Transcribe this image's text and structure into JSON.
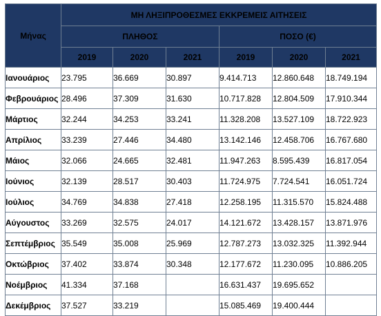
{
  "header": {
    "month_label": "Μήνας",
    "title": "ΜΗ ΛΗΞΙΠΡΟΘΕΣΜΕΣ ΕΚΚΡΕΜΕΙΣ ΑΙΤΗΣΕΙΣ",
    "group_count": "ΠΛΗΘΟΣ",
    "group_amount": "ΠΟΣΟ (€)",
    "years": [
      "2019",
      "2020",
      "2021",
      "2019",
      "2020",
      "2021"
    ]
  },
  "rows": [
    {
      "month": "Ιανουάριος",
      "values": [
        "23.795",
        "36.669",
        "30.897",
        "9.414.713",
        "12.860.648",
        "18.749.194"
      ]
    },
    {
      "month": "Φεβρουάριος",
      "values": [
        "28.496",
        "37.309",
        "31.630",
        "10.717.828",
        "12.804.509",
        "17.910.344"
      ]
    },
    {
      "month": "Μάρτιος",
      "values": [
        "32.244",
        "34.253",
        "33.241",
        "11.328.208",
        "13.527.109",
        "18.722.923"
      ]
    },
    {
      "month": "Απρίλιος",
      "values": [
        "33.239",
        "27.446",
        "34.480",
        "13.142.146",
        "12.458.706",
        "16.767.680"
      ]
    },
    {
      "month": "Μάιος",
      "values": [
        "32.066",
        "24.665",
        "32.481",
        "11.947.263",
        "8.595.439",
        "16.817.054"
      ]
    },
    {
      "month": "Ιούνιος",
      "values": [
        "32.139",
        "28.517",
        "30.403",
        "11.724.975",
        "7.724.541",
        "16.051.724"
      ]
    },
    {
      "month": "Ιούλιος",
      "values": [
        "34.769",
        "34.838",
        "27.418",
        "12.258.195",
        "11.315.570",
        "15.824.488"
      ]
    },
    {
      "month": "Αύγουστος",
      "values": [
        "33.269",
        "32.575",
        "24.017",
        "14.121.672",
        "13.428.157",
        "13.871.976"
      ]
    },
    {
      "month": "Σεπτέμβριος",
      "values": [
        "35.549",
        "35.008",
        "25.969",
        "12.787.273",
        "13.032.325",
        "11.392.944"
      ]
    },
    {
      "month": "Οκτώβριος",
      "values": [
        "37.402",
        "33.874",
        "30.348",
        "12.177.672",
        "11.230.095",
        "10.886.205"
      ]
    },
    {
      "month": "Νοέμβριος",
      "values": [
        "41.334",
        "37.168",
        "",
        "16.631.437",
        "19.695.652",
        ""
      ]
    },
    {
      "month": "Δεκέμβριος",
      "values": [
        "37.527",
        "33.219",
        "",
        "15.085.469",
        "19.400.444",
        ""
      ]
    }
  ]
}
